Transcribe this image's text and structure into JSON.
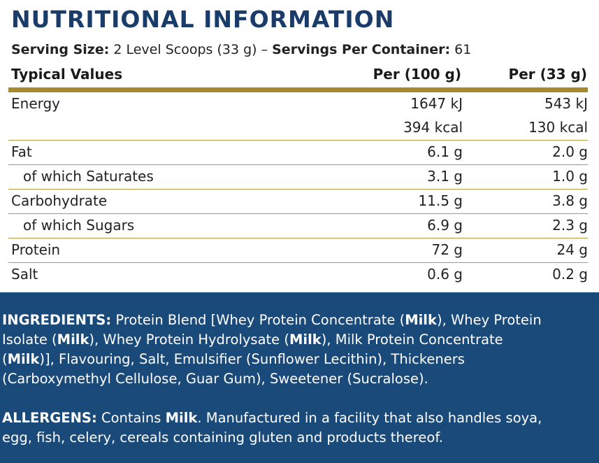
{
  "title": "NUTRITIONAL INFORMATION",
  "serving": {
    "size_label": "Serving Size:",
    "size_value": " 2 Level Scoops (33 g)  –  ",
    "servings_label": "Servings Per Container:",
    "servings_value": " 61"
  },
  "table": {
    "headers": {
      "label": "Typical Values",
      "per100": "Per (100 g)",
      "perServing": "Per (33 g)"
    },
    "rows": [
      {
        "label": "Energy",
        "per100": "1647 kJ",
        "perServing": "543 kJ",
        "per100_2": "394 kcal",
        "perServing_2": "130 kcal"
      },
      {
        "label": "Fat",
        "per100": "6.1 g",
        "perServing": "2.0 g"
      },
      {
        "label": "of which Saturates",
        "per100": "3.1 g",
        "perServing": "1.0 g"
      },
      {
        "label": "Carbohydrate",
        "per100": "11.5 g",
        "perServing": "3.8 g"
      },
      {
        "label": "of which Sugars",
        "per100": "6.9 g",
        "perServing": "2.3 g"
      },
      {
        "label": "Protein",
        "per100": "72 g",
        "perServing": "24 g"
      },
      {
        "label": "Salt",
        "per100": "0.6 g",
        "perServing": "0.2 g"
      }
    ]
  },
  "ingredients": {
    "heading": "INGREDIENTS:",
    "l1a": " Protein Blend [Whey Protein Concentrate (",
    "milk": "Milk",
    "l1b": "), Whey Protein",
    "l2a": "Isolate (",
    "l2b": "), Whey Protein Hydrolysate (",
    "l2c": "), Milk Protein Concentrate",
    "l3a": "(",
    "l3b": ")], Flavouring, Salt, Emulsifier (Sunflower Lecithin), Thickeners",
    "l4": "(Carboxymethyl Cellulose, Guar Gum), Sweetener (Sucralose)."
  },
  "allergens": {
    "heading": "ALLERGENS:",
    "l1a": " Contains ",
    "milk": "Milk",
    "l1b": ". Manufactured in a facility that also handles soya,",
    "l2": "egg, fish, celery, cereals containing gluten and products thereof."
  },
  "colors": {
    "title": "#1a3c6a",
    "gold": "#a6882f",
    "panel": "#1a4a7a"
  }
}
